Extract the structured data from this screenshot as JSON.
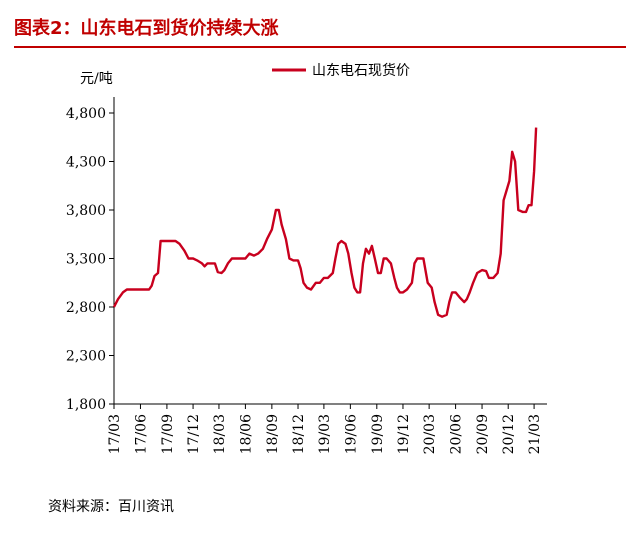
{
  "figure_title": "图表2：山东电石到货价持续大涨",
  "source": "资料来源：百川资讯",
  "colors": {
    "accent": "#c00000",
    "series": "#c8001e",
    "axis": "#000000"
  },
  "chart_data": {
    "type": "line",
    "ylabel": "元/吨",
    "ylim": [
      1800,
      4800
    ],
    "yticks": [
      1800,
      2300,
      2800,
      3300,
      3800,
      4300,
      4800
    ],
    "ytick_labels": [
      "1,800",
      "2,300",
      "2,800",
      "3,300",
      "3,800",
      "4,300",
      "4,800"
    ],
    "xticks": [
      "17/03",
      "17/06",
      "17/09",
      "17/12",
      "18/03",
      "18/06",
      "18/09",
      "18/12",
      "19/03",
      "19/06",
      "19/09",
      "19/12",
      "20/03",
      "20/06",
      "20/09",
      "20/12",
      "21/03"
    ],
    "legend_position": "top-center",
    "series": [
      {
        "name": "山东电石现货价",
        "points": [
          [
            "2017-03-01",
            2800
          ],
          [
            "2017-03-15",
            2880
          ],
          [
            "2017-04-01",
            2950
          ],
          [
            "2017-04-15",
            2980
          ],
          [
            "2017-05-01",
            2980
          ],
          [
            "2017-06-01",
            2980
          ],
          [
            "2017-07-01",
            2980
          ],
          [
            "2017-07-10",
            3020
          ],
          [
            "2017-07-20",
            3120
          ],
          [
            "2017-08-01",
            3150
          ],
          [
            "2017-08-10",
            3480
          ],
          [
            "2017-09-01",
            3480
          ],
          [
            "2017-10-01",
            3480
          ],
          [
            "2017-10-15",
            3450
          ],
          [
            "2017-11-01",
            3380
          ],
          [
            "2017-11-15",
            3300
          ],
          [
            "2017-12-01",
            3300
          ],
          [
            "2017-12-15",
            3280
          ],
          [
            "2018-01-01",
            3250
          ],
          [
            "2018-01-10",
            3220
          ],
          [
            "2018-01-20",
            3250
          ],
          [
            "2018-02-01",
            3250
          ],
          [
            "2018-02-15",
            3250
          ],
          [
            "2018-02-25",
            3160
          ],
          [
            "2018-03-10",
            3150
          ],
          [
            "2018-03-20",
            3180
          ],
          [
            "2018-04-01",
            3250
          ],
          [
            "2018-04-15",
            3300
          ],
          [
            "2018-05-01",
            3300
          ],
          [
            "2018-05-15",
            3300
          ],
          [
            "2018-06-01",
            3300
          ],
          [
            "2018-06-15",
            3350
          ],
          [
            "2018-07-01",
            3330
          ],
          [
            "2018-07-15",
            3350
          ],
          [
            "2018-08-01",
            3400
          ],
          [
            "2018-08-15",
            3500
          ],
          [
            "2018-09-01",
            3600
          ],
          [
            "2018-09-15",
            3800
          ],
          [
            "2018-09-25",
            3800
          ],
          [
            "2018-10-05",
            3650
          ],
          [
            "2018-10-20",
            3500
          ],
          [
            "2018-11-01",
            3300
          ],
          [
            "2018-11-15",
            3280
          ],
          [
            "2018-12-01",
            3280
          ],
          [
            "2018-12-10",
            3200
          ],
          [
            "2018-12-20",
            3050
          ],
          [
            "2019-01-01",
            3000
          ],
          [
            "2019-01-15",
            2980
          ],
          [
            "2019-02-01",
            3050
          ],
          [
            "2019-02-15",
            3050
          ],
          [
            "2019-03-01",
            3100
          ],
          [
            "2019-03-15",
            3100
          ],
          [
            "2019-04-01",
            3150
          ],
          [
            "2019-04-10",
            3300
          ],
          [
            "2019-04-20",
            3450
          ],
          [
            "2019-05-01",
            3480
          ],
          [
            "2019-05-15",
            3450
          ],
          [
            "2019-05-25",
            3350
          ],
          [
            "2019-06-05",
            3150
          ],
          [
            "2019-06-15",
            3000
          ],
          [
            "2019-06-25",
            2950
          ],
          [
            "2019-07-05",
            2950
          ],
          [
            "2019-07-15",
            3250
          ],
          [
            "2019-07-25",
            3400
          ],
          [
            "2019-08-05",
            3350
          ],
          [
            "2019-08-15",
            3430
          ],
          [
            "2019-08-25",
            3300
          ],
          [
            "2019-09-05",
            3150
          ],
          [
            "2019-09-15",
            3150
          ],
          [
            "2019-09-25",
            3300
          ],
          [
            "2019-10-05",
            3300
          ],
          [
            "2019-10-20",
            3250
          ],
          [
            "2019-11-01",
            3100
          ],
          [
            "2019-11-10",
            3000
          ],
          [
            "2019-11-20",
            2950
          ],
          [
            "2019-12-01",
            2950
          ],
          [
            "2019-12-15",
            2980
          ],
          [
            "2020-01-01",
            3050
          ],
          [
            "2020-01-10",
            3250
          ],
          [
            "2020-01-20",
            3300
          ],
          [
            "2020-02-01",
            3300
          ],
          [
            "2020-02-10",
            3300
          ],
          [
            "2020-02-25",
            3050
          ],
          [
            "2020-03-10",
            3000
          ],
          [
            "2020-03-20",
            2850
          ],
          [
            "2020-04-01",
            2720
          ],
          [
            "2020-04-15",
            2700
          ],
          [
            "2020-05-01",
            2720
          ],
          [
            "2020-05-10",
            2850
          ],
          [
            "2020-05-20",
            2950
          ],
          [
            "2020-06-01",
            2950
          ],
          [
            "2020-06-15",
            2900
          ],
          [
            "2020-07-01",
            2850
          ],
          [
            "2020-07-10",
            2880
          ],
          [
            "2020-07-20",
            2950
          ],
          [
            "2020-08-01",
            3050
          ],
          [
            "2020-08-15",
            3150
          ],
          [
            "2020-09-01",
            3180
          ],
          [
            "2020-09-15",
            3170
          ],
          [
            "2020-09-25",
            3100
          ],
          [
            "2020-10-10",
            3100
          ],
          [
            "2020-10-25",
            3150
          ],
          [
            "2020-11-05",
            3350
          ],
          [
            "2020-11-15",
            3900
          ],
          [
            "2020-11-25",
            4000
          ],
          [
            "2020-12-05",
            4100
          ],
          [
            "2020-12-15",
            4400
          ],
          [
            "2020-12-25",
            4300
          ],
          [
            "2021-01-05",
            3800
          ],
          [
            "2021-01-20",
            3780
          ],
          [
            "2021-02-01",
            3780
          ],
          [
            "2021-02-10",
            3850
          ],
          [
            "2021-02-20",
            3850
          ],
          [
            "2021-03-01",
            4200
          ],
          [
            "2021-03-08",
            4650
          ]
        ]
      }
    ]
  }
}
